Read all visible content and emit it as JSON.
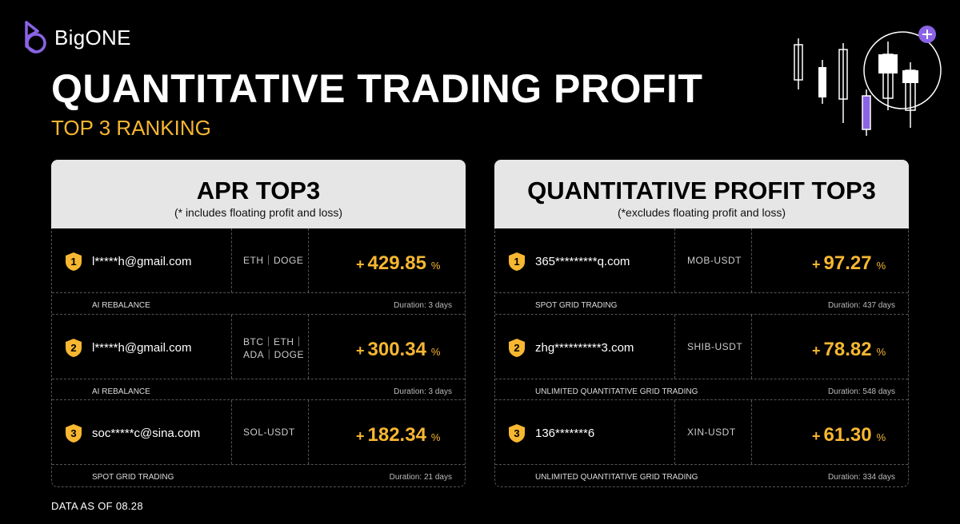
{
  "brand": {
    "name": "BigONE"
  },
  "header": {
    "title": "QUANTITATIVE TRADING PROFIT",
    "subtitle": "TOP 3 RANKING"
  },
  "colors": {
    "accent": "#f7b731",
    "purple": "#8a63e6",
    "panel_header": "#e6e6e6",
    "background": "#000000"
  },
  "apr_panel": {
    "title": "APR TOP3",
    "note": "(* includes floating profit and loss)",
    "rows": [
      {
        "rank": "1",
        "user": "l*****h@gmail.com",
        "pair_line1": "ETH｜DOGE",
        "pair_line2": "",
        "sign": "+",
        "value": "429.85",
        "unit": "%",
        "strategy": "AI REBALANCE",
        "duration": "Duration: 3 days"
      },
      {
        "rank": "2",
        "user": "l*****h@gmail.com",
        "pair_line1": "BTC｜ETH｜",
        "pair_line2": "ADA｜DOGE",
        "sign": "+",
        "value": "300.34",
        "unit": "%",
        "strategy": "AI REBALANCE",
        "duration": "Duration: 3 days"
      },
      {
        "rank": "3",
        "user": "soc*****c@sina.com",
        "pair_line1": "SOL-USDT",
        "pair_line2": "",
        "sign": "+",
        "value": "182.34",
        "unit": "%",
        "strategy": "SPOT GRID TRADING",
        "duration": "Duration: 21 days"
      }
    ]
  },
  "profit_panel": {
    "title": "QUANTITATIVE PROFIT TOP3",
    "note": "(*excludes floating profit and loss)",
    "rows": [
      {
        "rank": "1",
        "user": "365*********q.com",
        "pair_line1": "MOB-USDT",
        "pair_line2": "",
        "sign": "+",
        "value": "97.27",
        "unit": "%",
        "strategy": "SPOT GRID TRADING",
        "duration": "Duration: 437 days"
      },
      {
        "rank": "2",
        "user": "zhg**********3.com",
        "pair_line1": "SHIB-USDT",
        "pair_line2": "",
        "sign": "+",
        "value": "78.82",
        "unit": "%",
        "strategy": "UNLIMITED QUANTITATIVE  GRID TRADING",
        "duration": "Duration: 548 days"
      },
      {
        "rank": "3",
        "user": "136*******6",
        "pair_line1": "XIN-USDT",
        "pair_line2": "",
        "sign": "+",
        "value": "61.30",
        "unit": "%",
        "strategy": "UNLIMITED QUANTITATIVE  GRID TRADING",
        "duration": "Duration: 334 days"
      }
    ]
  },
  "footer": {
    "text": "DATA AS OF 08.28"
  },
  "icons": {
    "logo": "bigone-logo-icon",
    "rank_badge": "shield-badge-icon",
    "decoration": "candlestick-icon",
    "plus": "plus-circle-icon"
  }
}
